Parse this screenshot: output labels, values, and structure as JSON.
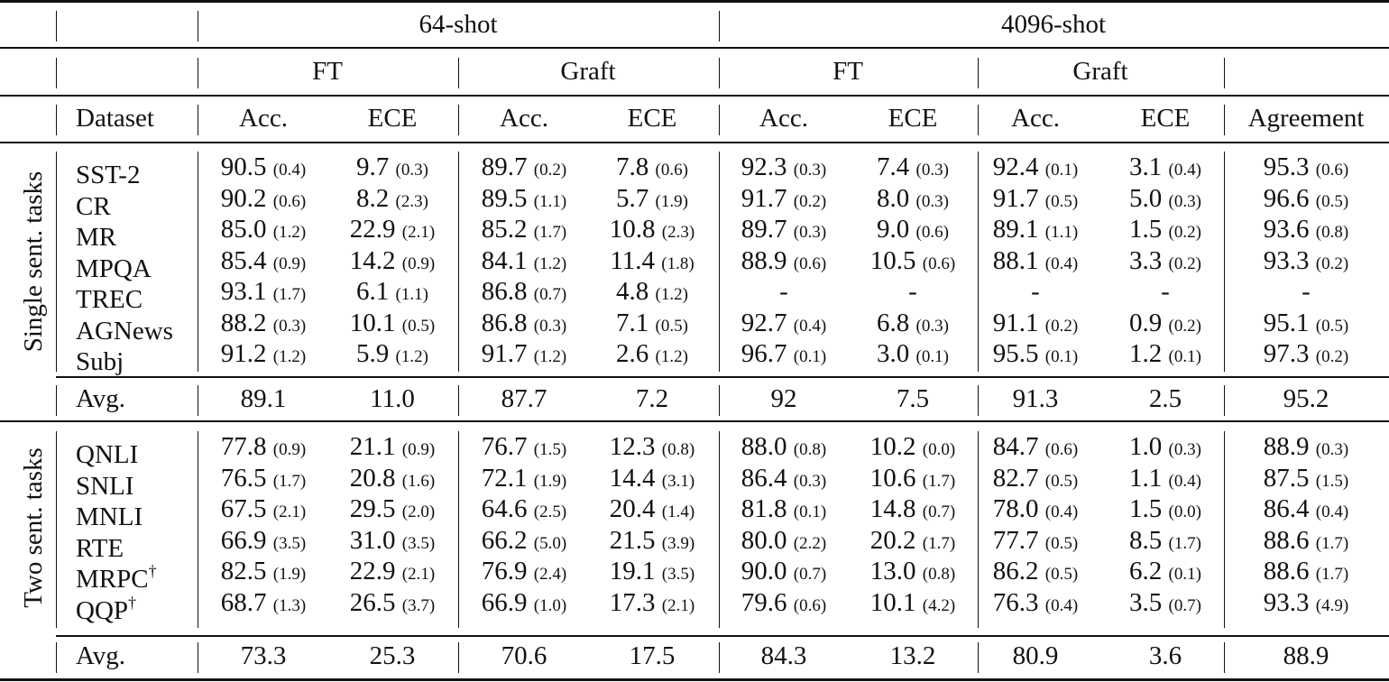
{
  "header": {
    "shot_groups": [
      "64-shot",
      "4096-shot"
    ],
    "methods": [
      "FT",
      "Graft",
      "FT",
      "Graft"
    ],
    "columns": [
      "Dataset",
      "Acc.",
      "ECE",
      "Acc.",
      "ECE",
      "Acc.",
      "ECE",
      "Acc.",
      "ECE",
      "Agreement"
    ]
  },
  "sections": [
    {
      "label": "Single sent. tasks",
      "rows": [
        {
          "dataset": "SST-2",
          "dagger": "",
          "cells": [
            [
              "90.5",
              "(0.4)"
            ],
            [
              "9.7",
              "(0.3)"
            ],
            [
              "89.7",
              "(0.2)"
            ],
            [
              "7.8",
              "(0.6)"
            ],
            [
              "92.3",
              "(0.3)"
            ],
            [
              "7.4",
              "(0.3)"
            ],
            [
              "92.4",
              "(0.1)"
            ],
            [
              "3.1",
              "(0.4)"
            ],
            [
              "95.3",
              "(0.6)"
            ]
          ]
        },
        {
          "dataset": "CR",
          "dagger": "",
          "cells": [
            [
              "90.2",
              "(0.6)"
            ],
            [
              "8.2",
              "(2.3)"
            ],
            [
              "89.5",
              "(1.1)"
            ],
            [
              "5.7",
              "(1.9)"
            ],
            [
              "91.7",
              "(0.2)"
            ],
            [
              "8.0",
              "(0.3)"
            ],
            [
              "91.7",
              "(0.5)"
            ],
            [
              "5.0",
              "(0.3)"
            ],
            [
              "96.6",
              "(0.5)"
            ]
          ]
        },
        {
          "dataset": "MR",
          "dagger": "",
          "cells": [
            [
              "85.0",
              "(1.2)"
            ],
            [
              "22.9",
              "(2.1)"
            ],
            [
              "85.2",
              "(1.7)"
            ],
            [
              "10.8",
              "(2.3)"
            ],
            [
              "89.7",
              "(0.3)"
            ],
            [
              "9.0",
              "(0.6)"
            ],
            [
              "89.1",
              "(1.1)"
            ],
            [
              "1.5",
              "(0.2)"
            ],
            [
              "93.6",
              "(0.8)"
            ]
          ]
        },
        {
          "dataset": "MPQA",
          "dagger": "",
          "cells": [
            [
              "85.4",
              "(0.9)"
            ],
            [
              "14.2",
              "(0.9)"
            ],
            [
              "84.1",
              "(1.2)"
            ],
            [
              "11.4",
              "(1.8)"
            ],
            [
              "88.9",
              "(0.6)"
            ],
            [
              "10.5",
              "(0.6)"
            ],
            [
              "88.1",
              "(0.4)"
            ],
            [
              "3.3",
              "(0.2)"
            ],
            [
              "93.3",
              "(0.2)"
            ]
          ]
        },
        {
          "dataset": "TREC",
          "dagger": "",
          "cells": [
            [
              "93.1",
              "(1.7)"
            ],
            [
              "6.1",
              "(1.1)"
            ],
            [
              "86.8",
              "(0.7)"
            ],
            [
              "4.8",
              "(1.2)"
            ],
            [
              "-",
              ""
            ],
            [
              "-",
              ""
            ],
            [
              "-",
              ""
            ],
            [
              "-",
              ""
            ],
            [
              "-",
              ""
            ]
          ]
        },
        {
          "dataset": "AGNews",
          "dagger": "",
          "cells": [
            [
              "88.2",
              "(0.3)"
            ],
            [
              "10.1",
              "(0.5)"
            ],
            [
              "86.8",
              "(0.3)"
            ],
            [
              "7.1",
              "(0.5)"
            ],
            [
              "92.7",
              "(0.4)"
            ],
            [
              "6.8",
              "(0.3)"
            ],
            [
              "91.1",
              "(0.2)"
            ],
            [
              "0.9",
              "(0.2)"
            ],
            [
              "95.1",
              "(0.5)"
            ]
          ]
        },
        {
          "dataset": "Subj",
          "dagger": "",
          "cells": [
            [
              "91.2",
              "(1.2)"
            ],
            [
              "5.9",
              "(1.2)"
            ],
            [
              "91.7",
              "(1.2)"
            ],
            [
              "2.6",
              "(1.2)"
            ],
            [
              "96.7",
              "(0.1)"
            ],
            [
              "3.0",
              "(0.1)"
            ],
            [
              "95.5",
              "(0.1)"
            ],
            [
              "1.2",
              "(0.1)"
            ],
            [
              "97.3",
              "(0.2)"
            ]
          ]
        }
      ],
      "avg": {
        "label": "Avg.",
        "values": [
          "89.1",
          "11.0",
          "87.7",
          "7.2",
          "92",
          "7.5",
          "91.3",
          "2.5",
          "95.2"
        ]
      }
    },
    {
      "label": "Two sent. tasks",
      "rows": [
        {
          "dataset": "QNLI",
          "dagger": "",
          "cells": [
            [
              "77.8",
              "(0.9)"
            ],
            [
              "21.1",
              "(0.9)"
            ],
            [
              "76.7",
              "(1.5)"
            ],
            [
              "12.3",
              "(0.8)"
            ],
            [
              "88.0",
              "(0.8)"
            ],
            [
              "10.2",
              "(0.0)"
            ],
            [
              "84.7",
              "(0.6)"
            ],
            [
              "1.0",
              "(0.3)"
            ],
            [
              "88.9",
              "(0.3)"
            ]
          ]
        },
        {
          "dataset": "SNLI",
          "dagger": "",
          "cells": [
            [
              "76.5",
              "(1.7)"
            ],
            [
              "20.8",
              "(1.6)"
            ],
            [
              "72.1",
              "(1.9)"
            ],
            [
              "14.4",
              "(3.1)"
            ],
            [
              "86.4",
              "(0.3)"
            ],
            [
              "10.6",
              "(1.7)"
            ],
            [
              "82.7",
              "(0.5)"
            ],
            [
              "1.1",
              "(0.4)"
            ],
            [
              "87.5",
              "(1.5)"
            ]
          ]
        },
        {
          "dataset": "MNLI",
          "dagger": "",
          "cells": [
            [
              "67.5",
              "(2.1)"
            ],
            [
              "29.5",
              "(2.0)"
            ],
            [
              "64.6",
              "(2.5)"
            ],
            [
              "20.4",
              "(1.4)"
            ],
            [
              "81.8",
              "(0.1)"
            ],
            [
              "14.8",
              "(0.7)"
            ],
            [
              "78.0",
              "(0.4)"
            ],
            [
              "1.5",
              "(0.0)"
            ],
            [
              "86.4",
              "(0.4)"
            ]
          ]
        },
        {
          "dataset": "RTE",
          "dagger": "",
          "cells": [
            [
              "66.9",
              "(3.5)"
            ],
            [
              "31.0",
              "(3.5)"
            ],
            [
              "66.2",
              "(5.0)"
            ],
            [
              "21.5",
              "(3.9)"
            ],
            [
              "80.0",
              "(2.2)"
            ],
            [
              "20.2",
              "(1.7)"
            ],
            [
              "77.7",
              "(0.5)"
            ],
            [
              "8.5",
              "(1.7)"
            ],
            [
              "88.6",
              "(1.7)"
            ]
          ]
        },
        {
          "dataset": "MRPC",
          "dagger": "†",
          "cells": [
            [
              "82.5",
              "(1.9)"
            ],
            [
              "22.9",
              "(2.1)"
            ],
            [
              "76.9",
              "(2.4)"
            ],
            [
              "19.1",
              "(3.5)"
            ],
            [
              "90.0",
              "(0.7)"
            ],
            [
              "13.0",
              "(0.8)"
            ],
            [
              "86.2",
              "(0.5)"
            ],
            [
              "6.2",
              "(0.1)"
            ],
            [
              "88.6",
              "(1.7)"
            ]
          ]
        },
        {
          "dataset": "QQP",
          "dagger": "†",
          "cells": [
            [
              "68.7",
              "(1.3)"
            ],
            [
              "26.5",
              "(3.7)"
            ],
            [
              "66.9",
              "(1.0)"
            ],
            [
              "17.3",
              "(2.1)"
            ],
            [
              "79.6",
              "(0.6)"
            ],
            [
              "10.1",
              "(4.2)"
            ],
            [
              "76.3",
              "(0.4)"
            ],
            [
              "3.5",
              "(0.7)"
            ],
            [
              "93.3",
              "(4.9)"
            ]
          ]
        }
      ],
      "avg": {
        "label": "Avg.",
        "values": [
          "73.3",
          "25.3",
          "70.6",
          "17.5",
          "84.3",
          "13.2",
          "80.9",
          "3.6",
          "88.9"
        ]
      }
    }
  ],
  "chart_data": {
    "type": "table",
    "title": "",
    "column_groups": [
      {
        "shots": "64-shot",
        "method": "FT",
        "metrics": [
          "Acc.",
          "ECE"
        ]
      },
      {
        "shots": "64-shot",
        "method": "Graft",
        "metrics": [
          "Acc.",
          "ECE"
        ]
      },
      {
        "shots": "4096-shot",
        "method": "FT",
        "metrics": [
          "Acc.",
          "ECE"
        ]
      },
      {
        "shots": "4096-shot",
        "method": "Graft",
        "metrics": [
          "Acc.",
          "ECE"
        ]
      },
      {
        "shots": "4096-shot",
        "method": "",
        "metrics": [
          "Agreement"
        ]
      }
    ],
    "columns": [
      "64-shot FT Acc.",
      "64-shot FT ECE",
      "64-shot Graft Acc.",
      "64-shot Graft ECE",
      "4096-shot FT Acc.",
      "4096-shot FT ECE",
      "4096-shot Graft Acc.",
      "4096-shot Graft ECE",
      "4096-shot Agreement"
    ],
    "groups": [
      {
        "name": "Single sent. tasks",
        "rows": {
          "SST-2": [
            90.5,
            9.7,
            89.7,
            7.8,
            92.3,
            7.4,
            92.4,
            3.1,
            95.3
          ],
          "CR": [
            90.2,
            8.2,
            89.5,
            5.7,
            91.7,
            8.0,
            91.7,
            5.0,
            96.6
          ],
          "MR": [
            85.0,
            22.9,
            85.2,
            10.8,
            89.7,
            9.0,
            89.1,
            1.5,
            93.6
          ],
          "MPQA": [
            85.4,
            14.2,
            84.1,
            11.4,
            88.9,
            10.5,
            88.1,
            3.3,
            93.3
          ],
          "TREC": [
            93.1,
            6.1,
            86.8,
            4.8,
            null,
            null,
            null,
            null,
            null
          ],
          "AGNews": [
            88.2,
            10.1,
            86.8,
            7.1,
            92.7,
            6.8,
            91.1,
            0.9,
            95.1
          ],
          "Subj": [
            91.2,
            5.9,
            91.7,
            2.6,
            96.7,
            3.0,
            95.5,
            1.2,
            97.3
          ],
          "Avg.": [
            89.1,
            11.0,
            87.7,
            7.2,
            92,
            7.5,
            91.3,
            2.5,
            95.2
          ]
        },
        "std": {
          "SST-2": [
            0.4,
            0.3,
            0.2,
            0.6,
            0.3,
            0.3,
            0.1,
            0.4,
            0.6
          ],
          "CR": [
            0.6,
            2.3,
            1.1,
            1.9,
            0.2,
            0.3,
            0.5,
            0.3,
            0.5
          ],
          "MR": [
            1.2,
            2.1,
            1.7,
            2.3,
            0.3,
            0.6,
            1.1,
            0.2,
            0.8
          ],
          "MPQA": [
            0.9,
            0.9,
            1.2,
            1.8,
            0.6,
            0.6,
            0.4,
            0.2,
            0.2
          ],
          "TREC": [
            1.7,
            1.1,
            0.7,
            1.2,
            null,
            null,
            null,
            null,
            null
          ],
          "AGNews": [
            0.3,
            0.5,
            0.3,
            0.5,
            0.4,
            0.3,
            0.2,
            0.2,
            0.5
          ],
          "Subj": [
            1.2,
            1.2,
            1.2,
            1.2,
            0.1,
            0.1,
            0.1,
            0.1,
            0.2
          ]
        }
      },
      {
        "name": "Two sent. tasks",
        "rows": {
          "QNLI": [
            77.8,
            21.1,
            76.7,
            12.3,
            88.0,
            10.2,
            84.7,
            1.0,
            88.9
          ],
          "SNLI": [
            76.5,
            20.8,
            72.1,
            14.4,
            86.4,
            10.6,
            82.7,
            1.1,
            87.5
          ],
          "MNLI": [
            67.5,
            29.5,
            64.6,
            20.4,
            81.8,
            14.8,
            78.0,
            1.5,
            86.4
          ],
          "RTE": [
            66.9,
            31.0,
            66.2,
            21.5,
            80.0,
            20.2,
            77.7,
            8.5,
            88.6
          ],
          "MRPC†": [
            82.5,
            22.9,
            76.9,
            19.1,
            90.0,
            13.0,
            86.2,
            6.2,
            88.6
          ],
          "QQP†": [
            68.7,
            26.5,
            66.9,
            17.3,
            79.6,
            10.1,
            76.3,
            3.5,
            93.3
          ],
          "Avg.": [
            73.3,
            25.3,
            70.6,
            17.5,
            84.3,
            13.2,
            80.9,
            3.6,
            88.9
          ]
        },
        "std": {
          "QNLI": [
            0.9,
            0.9,
            1.5,
            0.8,
            0.8,
            0.0,
            0.6,
            0.3,
            0.3
          ],
          "SNLI": [
            1.7,
            1.6,
            1.9,
            3.1,
            0.3,
            1.7,
            0.5,
            0.4,
            1.5
          ],
          "MNLI": [
            2.1,
            2.0,
            2.5,
            1.4,
            0.1,
            0.7,
            0.4,
            0.0,
            0.4
          ],
          "RTE": [
            3.5,
            3.5,
            5.0,
            3.9,
            2.2,
            1.7,
            0.5,
            1.7,
            1.7
          ],
          "MRPC†": [
            1.9,
            2.1,
            2.4,
            3.5,
            0.7,
            0.8,
            0.5,
            0.1,
            1.7
          ],
          "QQP†": [
            1.3,
            3.7,
            1.0,
            2.1,
            0.6,
            4.2,
            0.4,
            0.7,
            4.9
          ]
        }
      }
    ]
  }
}
